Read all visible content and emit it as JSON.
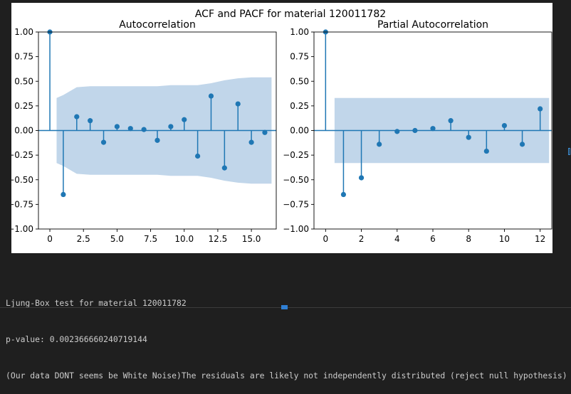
{
  "figure": {
    "suptitle": "ACF and PACF for material 120011782"
  },
  "colors": {
    "stem": "#1f77b4",
    "band": "#c1d6ea",
    "axes": "#000000"
  },
  "chart_data": [
    {
      "type": "stem",
      "title": "Autocorrelation",
      "xlabel": "",
      "ylabel": "",
      "xlim": [
        -0.85,
        16.85
      ],
      "ylim": [
        -1.0,
        1.0
      ],
      "xticks": [
        0,
        2.5,
        5,
        7.5,
        10,
        12.5,
        15
      ],
      "xtick_labels": [
        "0",
        "2.5",
        "5.0",
        "7.5",
        "10.0",
        "12.5",
        "15.0"
      ],
      "yticks": [
        -1.0,
        -0.75,
        -0.5,
        -0.25,
        0,
        0.25,
        0.5,
        0.75,
        1.0
      ],
      "ytick_labels": [
        "−1.00",
        "−0.75",
        "−0.50",
        "−0.25",
        "0.00",
        "0.25",
        "0.50",
        "0.75",
        "1.00"
      ],
      "lags": [
        0,
        1,
        2,
        3,
        4,
        5,
        6,
        7,
        8,
        9,
        10,
        11,
        12,
        13,
        14,
        15,
        16
      ],
      "values": [
        1.0,
        -0.65,
        0.14,
        0.1,
        -0.12,
        0.04,
        0.02,
        0.01,
        -0.1,
        0.04,
        0.11,
        -0.26,
        0.35,
        -0.38,
        0.27,
        -0.12,
        -0.02
      ],
      "confidence_band": {
        "x": [
          0.5,
          1,
          2,
          3,
          4,
          5,
          6,
          7,
          8,
          9,
          10,
          11,
          12,
          13,
          14,
          15,
          16.5
        ],
        "upper": [
          0.33,
          0.36,
          0.44,
          0.45,
          0.45,
          0.45,
          0.45,
          0.45,
          0.45,
          0.46,
          0.46,
          0.46,
          0.48,
          0.51,
          0.53,
          0.54,
          0.54
        ]
      },
      "grid": false
    },
    {
      "type": "stem",
      "title": "Partial Autocorrelation",
      "xlabel": "",
      "ylabel": "",
      "xlim": [
        -0.65,
        12.65
      ],
      "ylim": [
        -1.0,
        1.0
      ],
      "xticks": [
        0,
        2,
        4,
        6,
        8,
        10,
        12
      ],
      "xtick_labels": [
        "0",
        "2",
        "4",
        "6",
        "8",
        "10",
        "12"
      ],
      "yticks": [
        -1.0,
        -0.75,
        -0.5,
        -0.25,
        0,
        0.25,
        0.5,
        0.75,
        1.0
      ],
      "ytick_labels": [
        "−1.00",
        "−0.75",
        "−0.50",
        "−0.25",
        "0.00",
        "0.25",
        "0.50",
        "0.75",
        "1.00"
      ],
      "lags": [
        0,
        1,
        2,
        3,
        4,
        5,
        6,
        7,
        8,
        9,
        10,
        11,
        12
      ],
      "values": [
        1.0,
        -0.65,
        -0.48,
        -0.14,
        -0.01,
        0.0,
        0.02,
        0.1,
        -0.07,
        -0.21,
        0.05,
        -0.14,
        0.22
      ],
      "confidence_band": {
        "x": [
          0.5,
          12.5
        ],
        "upper": [
          0.33,
          0.33
        ]
      },
      "grid": false
    }
  ],
  "console": {
    "lines": [
      "Ljung-Box test for material 120011782",
      "p-value: 0.002366660240719144",
      "(Our data DONT seems be White Noise)The residuals are likely not independently distributed (reject null hypothesis)"
    ]
  }
}
